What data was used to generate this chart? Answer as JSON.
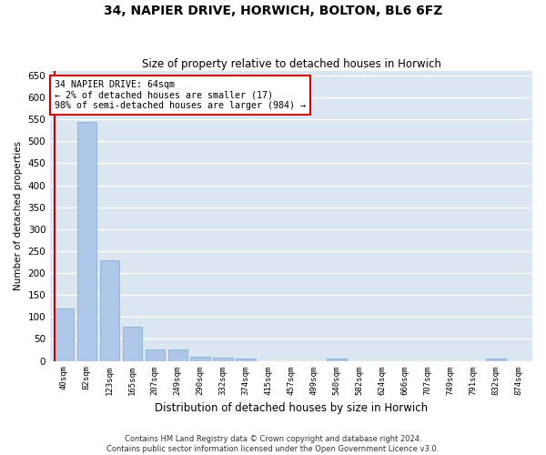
{
  "title": "34, NAPIER DRIVE, HORWICH, BOLTON, BL6 6FZ",
  "subtitle": "Size of property relative to detached houses in Horwich",
  "xlabel": "Distribution of detached houses by size in Horwich",
  "ylabel": "Number of detached properties",
  "categories": [
    "40sqm",
    "82sqm",
    "123sqm",
    "165sqm",
    "207sqm",
    "249sqm",
    "290sqm",
    "332sqm",
    "374sqm",
    "415sqm",
    "457sqm",
    "499sqm",
    "540sqm",
    "582sqm",
    "624sqm",
    "666sqm",
    "707sqm",
    "749sqm",
    "791sqm",
    "832sqm",
    "874sqm"
  ],
  "values": [
    120,
    545,
    230,
    78,
    25,
    25,
    10,
    8,
    5,
    0,
    0,
    0,
    5,
    0,
    0,
    0,
    0,
    0,
    0,
    5,
    0
  ],
  "bar_color": "#aec6e8",
  "bar_edge_color": "#7aaad0",
  "highlight_color": "#cc0000",
  "annotation_text": "34 NAPIER DRIVE: 64sqm\n← 2% of detached houses are smaller (17)\n98% of semi-detached houses are larger (984) →",
  "annotation_box_color": "#ffffff",
  "annotation_box_edge_color": "#cc0000",
  "ylim": [
    0,
    660
  ],
  "yticks": [
    0,
    50,
    100,
    150,
    200,
    250,
    300,
    350,
    400,
    450,
    500,
    550,
    600,
    650
  ],
  "background_color": "#dce6f0",
  "grid_color": "#ffffff",
  "fig_background": "#ffffff",
  "footer_line1": "Contains HM Land Registry data © Crown copyright and database right 2024.",
  "footer_line2": "Contains public sector information licensed under the Open Government Licence v3.0."
}
